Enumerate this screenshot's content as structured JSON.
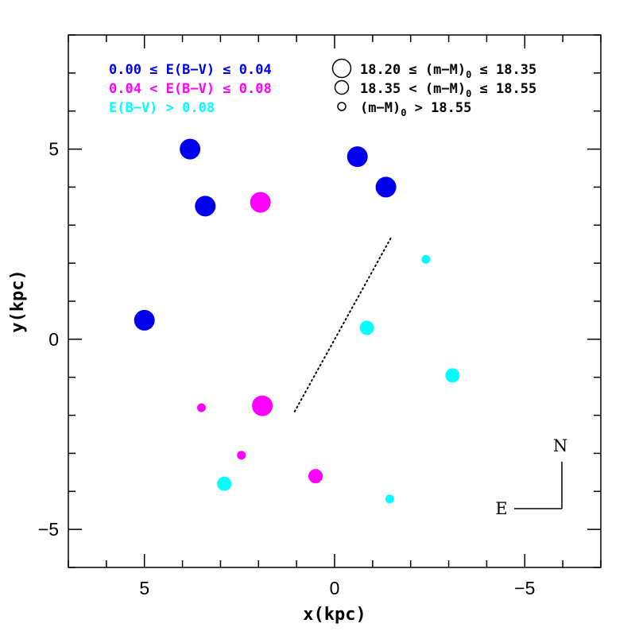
{
  "chart_data": {
    "type": "scatter",
    "title": "",
    "xlabel": "x(kpc)",
    "ylabel": "y(kpc)",
    "xlim": [
      7,
      -7
    ],
    "ylim": [
      -6,
      8
    ],
    "grid": false,
    "x_ticks": [
      5,
      0,
      -5
    ],
    "x_tick_labels": [
      "5",
      "0",
      "−5"
    ],
    "y_ticks": [
      5,
      0,
      -5
    ],
    "y_tick_labels": [
      "5",
      "0",
      "−5"
    ],
    "color_legend": [
      {
        "label": "0.00 ≤ E(B−V) ≤ 0.04",
        "color": "#0000ee",
        "class": "low"
      },
      {
        "label": "0.04 < E(B−V) ≤ 0.08",
        "color": "#ff00ff",
        "class": "mid"
      },
      {
        "label": "E(B−V) > 0.08",
        "color": "#00ffff",
        "class": "high"
      }
    ],
    "size_legend": [
      {
        "pre": "18.20 ≤ (m−M)",
        "sub": "0",
        "post": " ≤ 18.35",
        "class": "near"
      },
      {
        "pre": "18.35 < (m−M)",
        "sub": "0",
        "post": " ≤ 18.55",
        "class": "mid"
      },
      {
        "pre": "(m−M)",
        "sub": "0",
        "post": " > 18.55",
        "class": "far"
      }
    ],
    "points": [
      {
        "x": 3.8,
        "y": 5.0,
        "ebv_class": "low",
        "dist_class": "near"
      },
      {
        "x": 3.4,
        "y": 3.5,
        "ebv_class": "low",
        "dist_class": "near"
      },
      {
        "x": 5.0,
        "y": 0.5,
        "ebv_class": "low",
        "dist_class": "near"
      },
      {
        "x": -0.6,
        "y": 4.8,
        "ebv_class": "low",
        "dist_class": "near"
      },
      {
        "x": -1.35,
        "y": 4.0,
        "ebv_class": "low",
        "dist_class": "near"
      },
      {
        "x": 1.95,
        "y": 3.6,
        "ebv_class": "mid",
        "dist_class": "near"
      },
      {
        "x": 1.9,
        "y": -1.75,
        "ebv_class": "mid",
        "dist_class": "near"
      },
      {
        "x": 0.5,
        "y": -3.6,
        "ebv_class": "mid",
        "dist_class": "mid"
      },
      {
        "x": 3.5,
        "y": -1.8,
        "ebv_class": "mid",
        "dist_class": "far"
      },
      {
        "x": 2.45,
        "y": -3.05,
        "ebv_class": "mid",
        "dist_class": "far"
      },
      {
        "x": -0.85,
        "y": 0.3,
        "ebv_class": "high",
        "dist_class": "mid"
      },
      {
        "x": -3.1,
        "y": -0.95,
        "ebv_class": "high",
        "dist_class": "mid"
      },
      {
        "x": 2.9,
        "y": -3.8,
        "ebv_class": "high",
        "dist_class": "mid"
      },
      {
        "x": -2.4,
        "y": 2.1,
        "ebv_class": "high",
        "dist_class": "far"
      },
      {
        "x": -1.45,
        "y": -4.2,
        "ebv_class": "high",
        "dist_class": "far"
      }
    ],
    "dotted_line": [
      [
        1.05,
        -1.9
      ],
      [
        -1.5,
        2.7
      ]
    ],
    "compass": {
      "north": "N",
      "east": "E"
    }
  }
}
